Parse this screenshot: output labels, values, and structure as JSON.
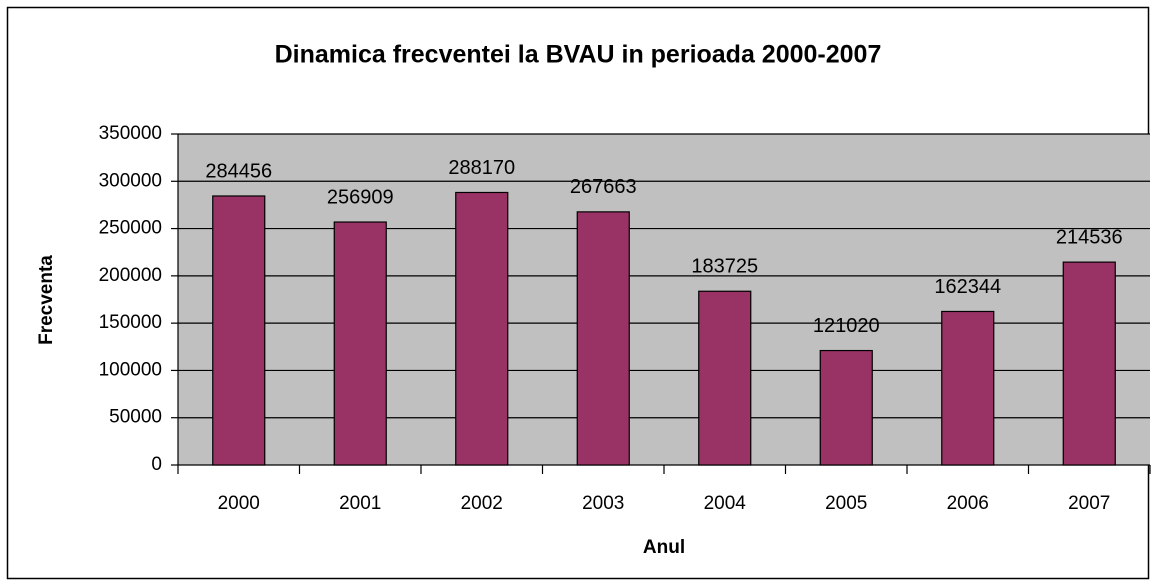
{
  "chart_data": {
    "type": "bar",
    "title": "Dinamica frecventei la BVAU in perioada 2000-2007",
    "xlabel": "Anul",
    "ylabel": "Frecventa",
    "categories": [
      "2000",
      "2001",
      "2002",
      "2003",
      "2004",
      "2005",
      "2006",
      "2007"
    ],
    "values": [
      284456,
      256909,
      288170,
      267663,
      183725,
      121020,
      162344,
      214536
    ],
    "color": "#993366",
    "plot_background": "#c0c0c0",
    "ylim": [
      0,
      350000
    ],
    "yticks": [
      0,
      50000,
      100000,
      150000,
      200000,
      250000,
      300000,
      350000
    ],
    "grid": true
  }
}
